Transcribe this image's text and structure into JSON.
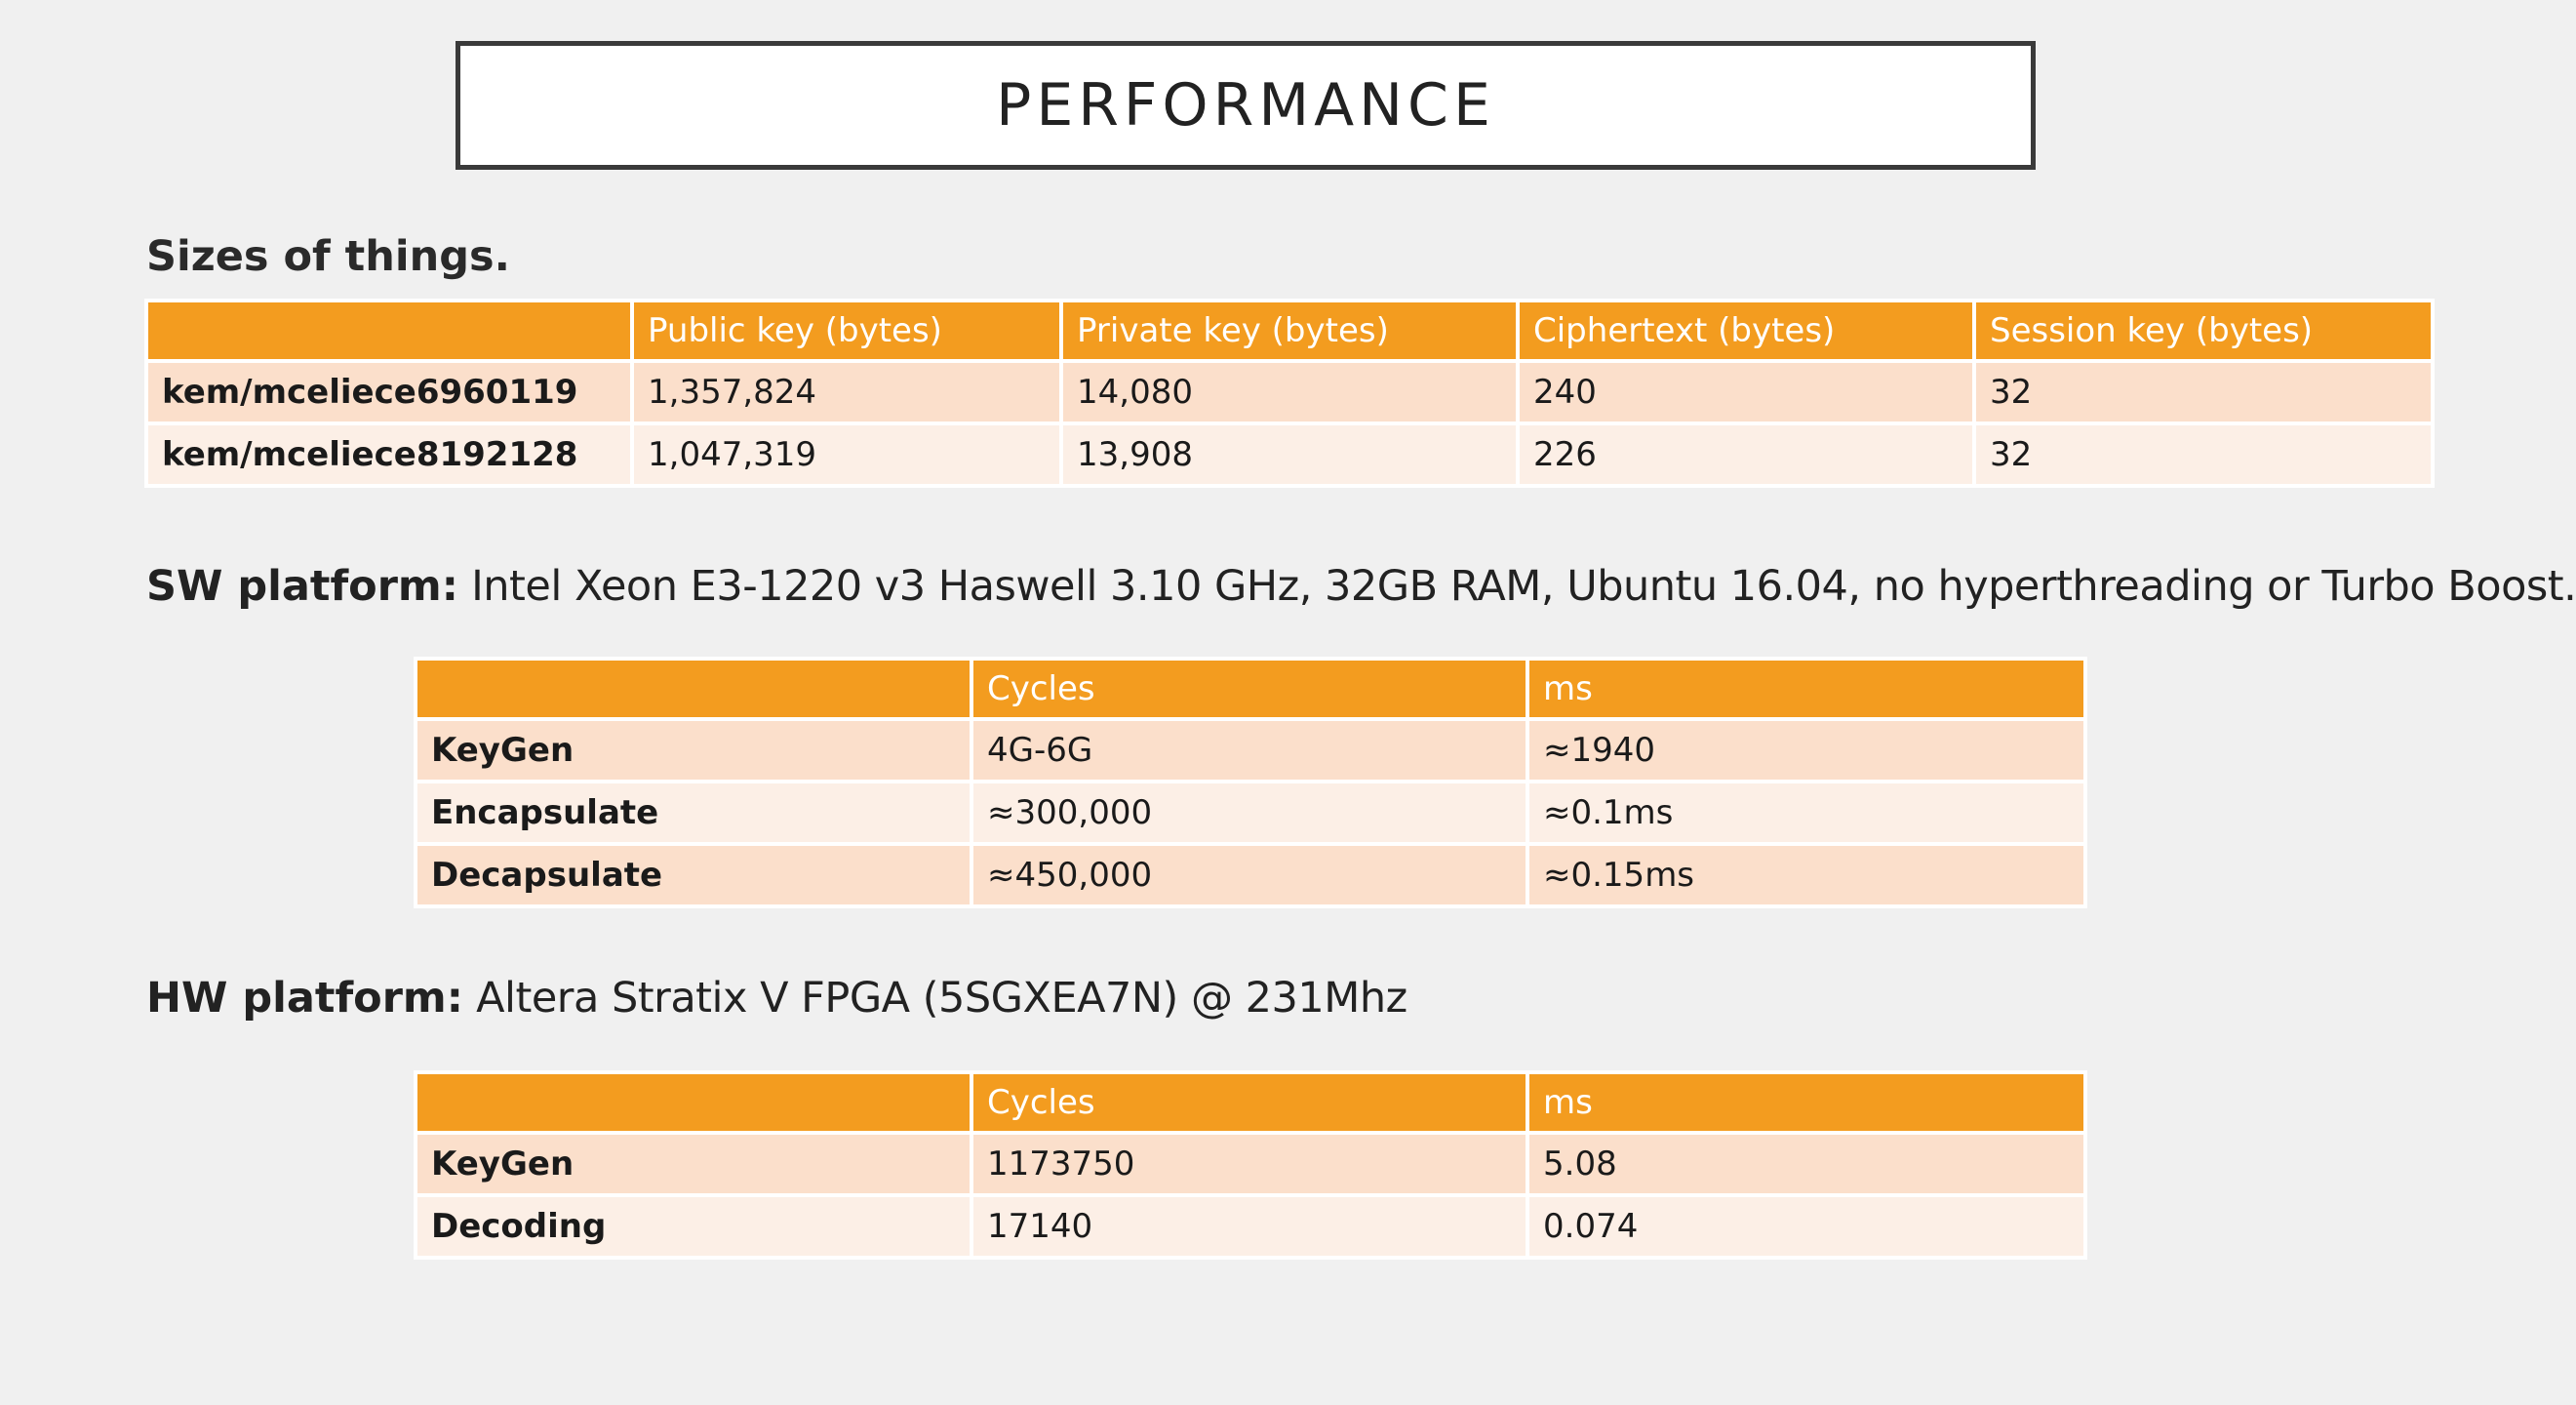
{
  "title": "PERFORMANCE",
  "sizes": {
    "heading": "Sizes of things.",
    "headers": [
      "",
      "Public key (bytes)",
      "Private key (bytes)",
      "Ciphertext (bytes)",
      "Session key (bytes)"
    ],
    "rows": [
      [
        "kem/mceliece6960119",
        "1,357,824",
        "14,080",
        "240",
        "32"
      ],
      [
        "kem/mceliece8192128",
        "1,047,319",
        "13,908",
        "226",
        "32"
      ]
    ]
  },
  "sw_platform": {
    "label": "SW platform:",
    "description": " Intel Xeon E3-1220 v3 Haswell 3.10 GHz, 32GB RAM, Ubuntu 16.04, no hyperthreading or Turbo Boost.",
    "headers": [
      "",
      "Cycles",
      "ms"
    ],
    "rows": [
      [
        "KeyGen",
        "4G-6G",
        "≈1940"
      ],
      [
        "Encapsulate",
        "≈300,000",
        "≈0.1ms"
      ],
      [
        "Decapsulate",
        "≈450,000",
        "≈0.15ms"
      ]
    ]
  },
  "hw_platform": {
    "label": "HW platform:",
    "description": " Altera Stratix V FPGA (5SGXEA7N) @ 231Mhz",
    "headers": [
      "",
      "Cycles",
      "ms"
    ],
    "rows": [
      [
        "KeyGen",
        "1173750",
        "5.08"
      ],
      [
        "Decoding",
        "17140",
        "0.074"
      ]
    ]
  },
  "colors": {
    "header_orange": "#f39c1f",
    "row_odd": "#fbdfcb",
    "row_even": "#fcefe6",
    "background": "#f0f0f0"
  }
}
